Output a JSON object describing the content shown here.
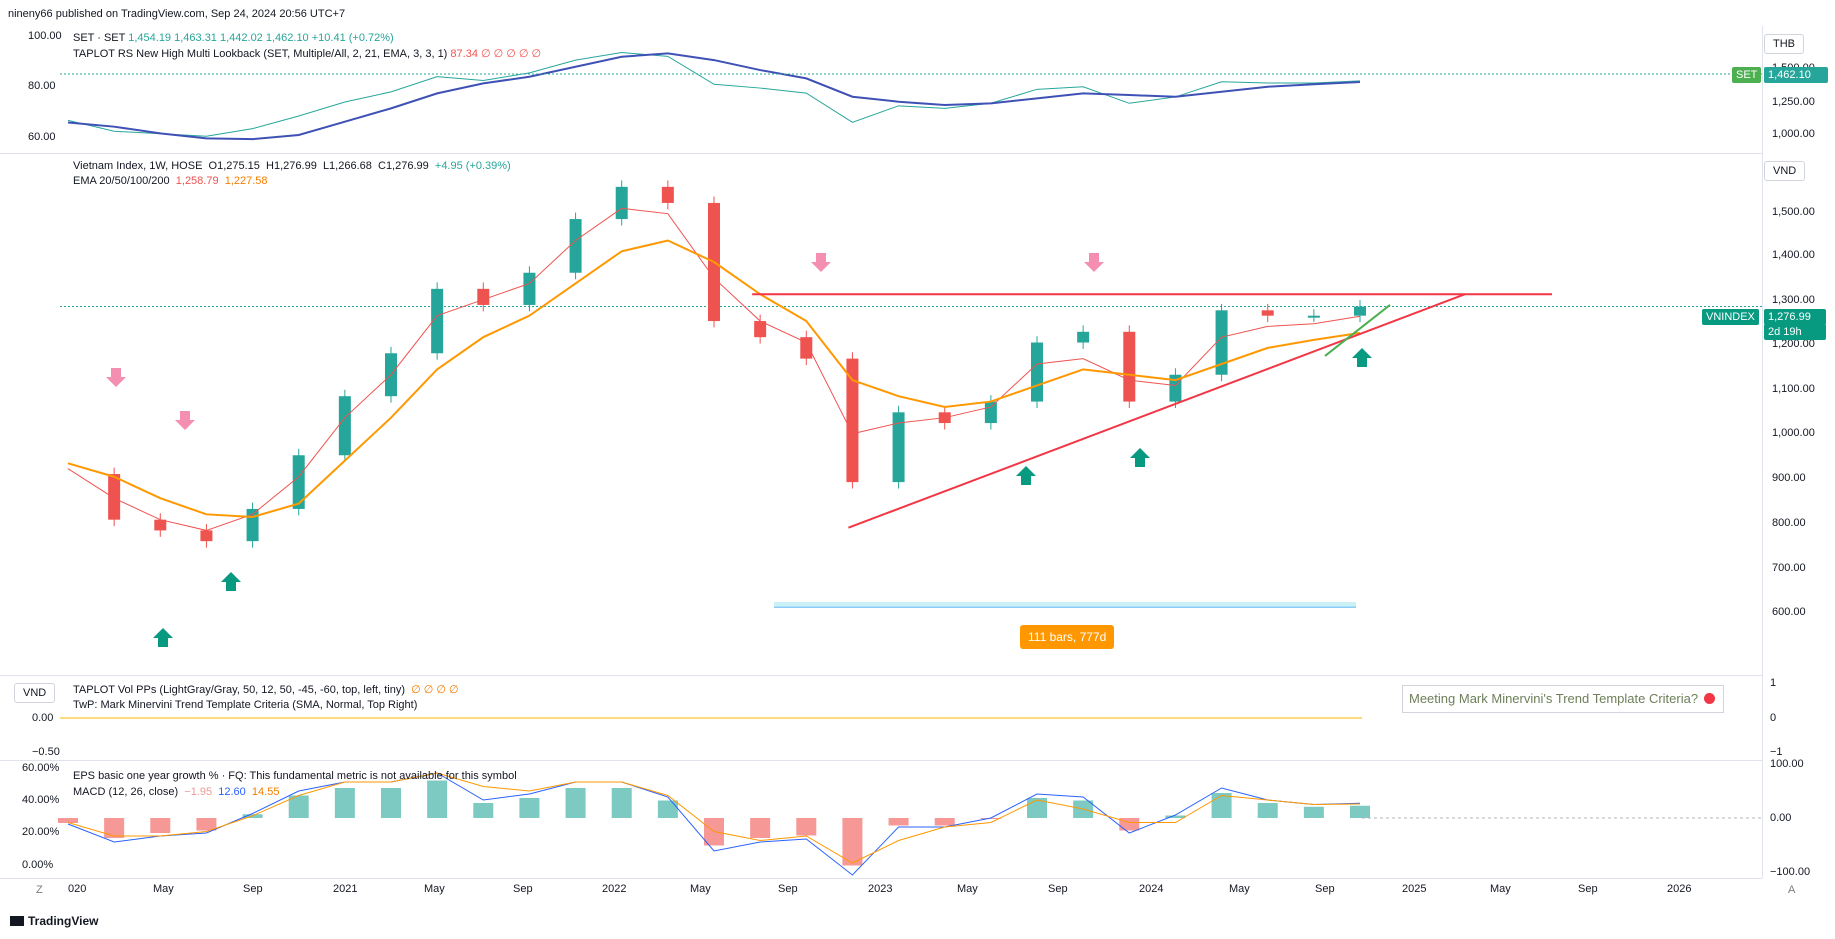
{
  "header": {
    "published": "nineny66 published on TradingView.com, Sep 24, 2024 20:56 UTC+7"
  },
  "top_pane": {
    "symbol_legend": "SET · SET",
    "ohlc": "1,454.19  1,463.31  1,442.02  1,462.10  +10.41 (+0.72%)",
    "indicator_legend": "TAPLOT RS New High Multi Lookback (SET, Multiple/All, 2, 21, EMA, 3, 3, 1)",
    "indicator_value": "87.34  ∅  ∅  ∅  ∅  ∅",
    "currency": "THB",
    "price_badge_symbol": "SET",
    "price_badge_value": "1,462.10",
    "left_axis": [
      "100.00",
      "80.00",
      "60.00"
    ],
    "right_axis": [
      "1,500.00",
      "1,250.00",
      "1,000.00"
    ]
  },
  "main_pane": {
    "title": "Vietnam Index, 1W, HOSE",
    "o": "O1,275.15",
    "h": "H1,276.99",
    "l": "L1,266.68",
    "c": "C1,276.99",
    "chg": "+4.95 (+0.39%)",
    "ema_legend": "EMA 20/50/100/200",
    "ema1": "1,258.79",
    "ema2": "1,227.58",
    "currency": "VND",
    "price_badge_symbol": "VNINDEX",
    "price_badge_value": "1,276.99",
    "price_badge_time": "2d 19h",
    "range_label": "111 bars, 777d",
    "right_axis": [
      "1,500.00",
      "1,400.00",
      "1,300.00",
      "1,200.00",
      "1,100.00",
      "1,000.00",
      "900.00",
      "800.00",
      "700.00",
      "600.00"
    ]
  },
  "vol_pane": {
    "currency": "VND",
    "legend1": "TAPLOT Vol PPs (LightGray/Gray, 50, 12, 50, -45, -60, top, left, tiny)",
    "legend1_values": "∅  ∅  ∅  ∅",
    "legend2": "TwP: Mark Minervini Trend Template Criteria (SMA, Normal, Top Right)",
    "left_axis": [
      "0.00",
      "−0.50"
    ],
    "right_axis": [
      "1",
      "0",
      "−1"
    ],
    "minervini_box": "Meeting Mark Minervini's Trend Template Criteria?"
  },
  "macd_pane": {
    "eps_legend": "EPS basic one year growth % · FQ: This fundamental metric is not available for this symbol",
    "macd_legend": "MACD (12, 26, close)",
    "hist": "−1.95",
    "macd": "12.60",
    "signal": "14.55",
    "left_axis": [
      "60.00%",
      "40.00%",
      "20.00%",
      "0.00%"
    ],
    "right_axis": [
      "100.00",
      "0.00",
      "−100.00"
    ]
  },
  "time_axis": [
    "020",
    "May",
    "Sep",
    "2021",
    "May",
    "Sep",
    "2022",
    "May",
    "Sep",
    "2023",
    "May",
    "Sep",
    "2024",
    "May",
    "Sep",
    "2025",
    "May",
    "Sep",
    "2026"
  ],
  "footer": {
    "brand": "TradingView",
    "left_icon": "Z",
    "right_icon": "A"
  },
  "chart_data": {
    "type": "line",
    "title": "Vietnam Index, 1W, HOSE",
    "x": [
      "2020-01",
      "2020-03",
      "2020-05",
      "2020-07",
      "2020-09",
      "2020-11",
      "2021-01",
      "2021-03",
      "2021-05",
      "2021-07",
      "2021-09",
      "2021-11",
      "2022-01",
      "2022-03",
      "2022-05",
      "2022-07",
      "2022-09",
      "2022-11",
      "2023-01",
      "2023-03",
      "2023-05",
      "2023-07",
      "2023-09",
      "2023-11",
      "2024-01",
      "2024-03",
      "2024-05",
      "2024-07",
      "2024-09"
    ],
    "series": [
      {
        "name": "Vietnam Index",
        "values": [
          965,
          880,
          860,
          840,
          900,
          1000,
          1110,
          1190,
          1310,
          1280,
          1340,
          1440,
          1500,
          1470,
          1250,
          1220,
          1180,
          950,
          1080,
          1060,
          1100,
          1210,
          1230,
          1100,
          1150,
          1270,
          1260,
          1260,
          1277
        ]
      },
      {
        "name": "EMA 20",
        "values": [
          975,
          920,
          880,
          860,
          890,
          960,
          1070,
          1150,
          1260,
          1290,
          1320,
          1400,
          1460,
          1450,
          1330,
          1250,
          1210,
          1040,
          1060,
          1070,
          1090,
          1170,
          1180,
          1140,
          1130,
          1220,
          1240,
          1245,
          1259
        ]
      },
      {
        "name": "EMA 50",
        "values": [
          985,
          960,
          920,
          890,
          885,
          910,
          990,
          1070,
          1160,
          1220,
          1260,
          1320,
          1380,
          1400,
          1360,
          1300,
          1250,
          1140,
          1110,
          1090,
          1100,
          1130,
          1160,
          1150,
          1140,
          1170,
          1200,
          1215,
          1228
        ]
      }
    ],
    "ylim": [
      600,
      1550
    ],
    "annotations": {
      "resistance": 1300,
      "range_label": "111 bars, 777d"
    }
  }
}
